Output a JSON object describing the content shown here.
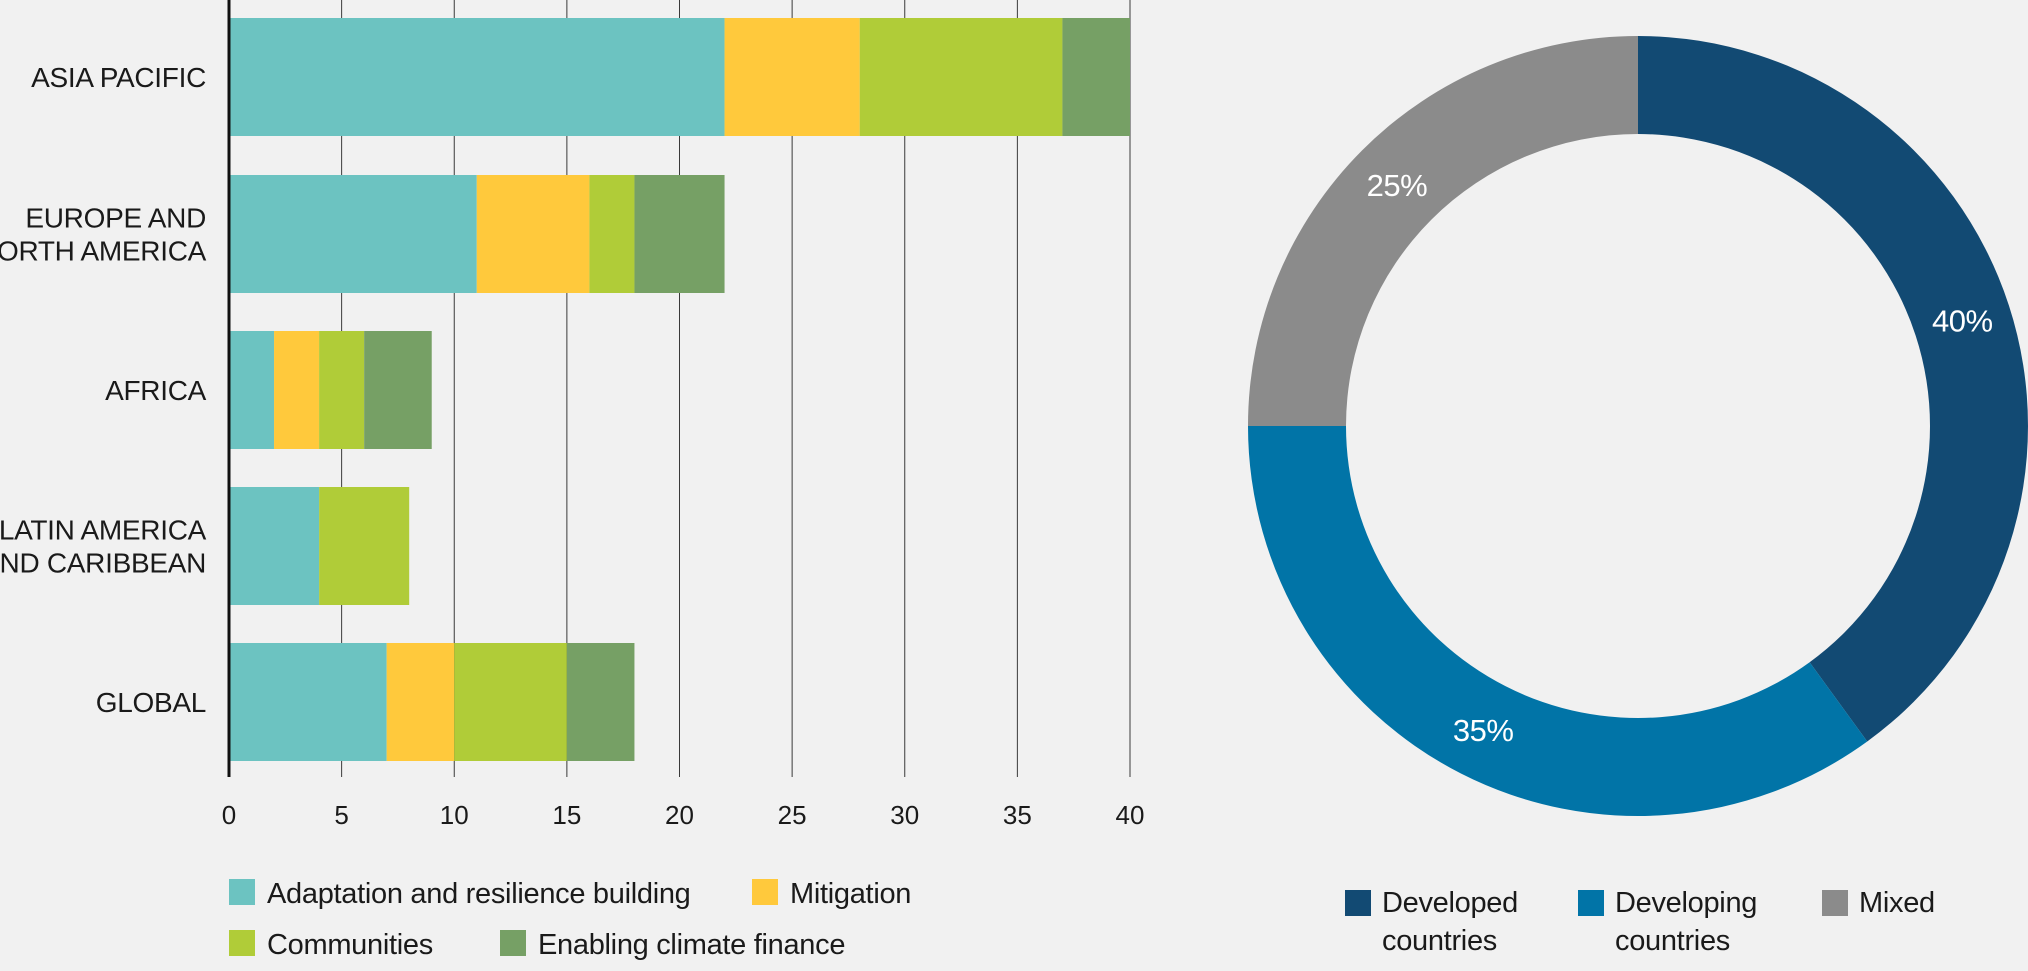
{
  "chart_data": [
    {
      "type": "bar",
      "orientation": "horizontal",
      "stacked": true,
      "categories": [
        "ASIA PACIFIC",
        "EUROPE AND NORTH AMERICA",
        "AFRICA",
        "LATIN AMERICA AND CARIBBEAN",
        "GLOBAL"
      ],
      "category_lines": [
        [
          "ASIA PACIFIC"
        ],
        [
          "EUROPE AND",
          "NORTH AMERICA"
        ],
        [
          "AFRICA"
        ],
        [
          "LATIN AMERICA",
          "AND CARIBBEAN"
        ],
        [
          "GLOBAL"
        ]
      ],
      "series": [
        {
          "name": "Adaptation and resilience building",
          "color": "#6cc3c1",
          "values": [
            22,
            11,
            2,
            4,
            7
          ]
        },
        {
          "name": "Mitigation",
          "color": "#ffc93c",
          "values": [
            6,
            5,
            2,
            0,
            3
          ]
        },
        {
          "name": "Communities",
          "color": "#b0cc38",
          "values": [
            9,
            2,
            2,
            4,
            5
          ]
        },
        {
          "name": "Enabling climate finance",
          "color": "#76a065",
          "values": [
            3,
            4,
            3,
            0,
            3
          ]
        }
      ],
      "xlim": [
        0,
        40
      ],
      "xticks": [
        0,
        5,
        10,
        15,
        20,
        25,
        30,
        35,
        40
      ],
      "grid": true,
      "legend": "bottom",
      "legend_rows": [
        [
          0,
          1
        ],
        [
          2,
          3
        ]
      ]
    },
    {
      "type": "pie",
      "donut": true,
      "slices": [
        {
          "name": "Developed countries",
          "name_lines": [
            "Developed",
            "countries"
          ],
          "value": 40,
          "label": "40%",
          "color": "#124a73"
        },
        {
          "name": "Developing countries",
          "name_lines": [
            "Developing",
            "countries"
          ],
          "value": 35,
          "label": "35%",
          "color": "#0174a7"
        },
        {
          "name": "Mixed",
          "name_lines": [
            "Mixed"
          ],
          "value": 25,
          "label": "25%",
          "color": "#8b8b8b"
        }
      ],
      "start_angle_deg": 0,
      "direction": "clockwise",
      "legend": "bottom"
    }
  ]
}
